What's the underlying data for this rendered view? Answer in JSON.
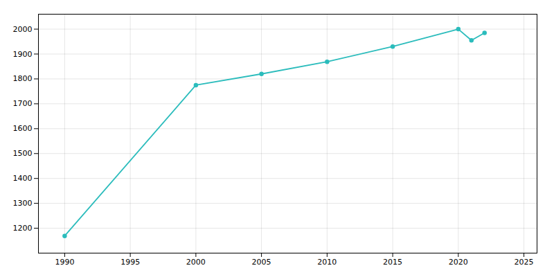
{
  "chart_data": {
    "type": "line",
    "x": [
      1990,
      2000,
      2005,
      2010,
      2015,
      2020,
      2021,
      2022
    ],
    "values": [
      1169,
      1775,
      1820,
      1869,
      1930,
      2000,
      1955,
      1985
    ],
    "color": "#2bbcbc",
    "marker": "circle",
    "xlim": [
      1988,
      2026
    ],
    "ylim": [
      1100,
      2060
    ],
    "xticks": [
      1990,
      1995,
      2000,
      2005,
      2010,
      2015,
      2020,
      2025
    ],
    "yticks": [
      1200,
      1300,
      1400,
      1500,
      1600,
      1700,
      1800,
      1900,
      2000
    ],
    "grid": true
  }
}
